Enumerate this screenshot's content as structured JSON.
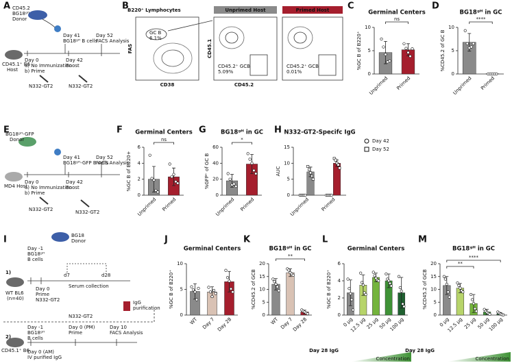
{
  "panel_labels": [
    "A",
    "B",
    "C",
    "D",
    "E",
    "F",
    "G",
    "H",
    "I",
    "J",
    "K",
    "L",
    "M"
  ],
  "schematic_a": {
    "texts": [
      "CD45.2",
      "BG18ᵍᴴ",
      "Donor",
      "Day 41",
      "BG18ᵍᴴ B cells",
      "Day 52",
      "FACS Analysis",
      "CD45.1⁺ B6",
      "Host",
      "Day 0",
      "a) No Immunization",
      "b) Prime",
      "Day 42",
      "Boost",
      "N332-GT2",
      "N332-GT2"
    ]
  },
  "flow_b": {
    "texts": [
      "B220⁺ Lymphocytes",
      "Unprimed Host",
      "Primed Host",
      "FAS",
      "CD38",
      "GC B",
      "6.1%",
      "CD45.1",
      "CD45.2",
      "CD45.2⁺ GCB",
      "5.09%",
      "CD45.2⁺ GCB",
      "0.01%"
    ]
  },
  "schematic_e": {
    "texts": [
      "BG18ᵍᴴ-GFP",
      "Donor",
      "Day 41",
      "BG18ᵍᴴ-GFP B cells",
      "Day 52",
      "FACS Analysis",
      "MD4 Host",
      "Day 0",
      "a) No Immunization",
      "b) Prime",
      "Day 42",
      "Boost",
      "N332-GT2",
      "N332-GT2"
    ]
  },
  "schematic_i": {
    "texts": [
      "1)",
      "BG18",
      "Donor",
      "Day -1",
      "BG18ᵍᴴ",
      "B cells",
      "WT BL6",
      "(n=40)",
      "Day 0",
      "Prime",
      "N332-GT2",
      "d7",
      "d28",
      "Serum collection",
      "IgG",
      "purification",
      "2)",
      "Day -1",
      "BG18ᵍᴴ",
      "B cells",
      "N332-GT2",
      "Day 0 (PM)",
      "Prime",
      "Day 10",
      "FACS Analysis",
      "Day 0 (AM)",
      "IV purified IgG",
      "CD45.1⁺ B6"
    ]
  },
  "chart_data": [
    {
      "type": "bar",
      "title": "Germinal Centers",
      "ylabel": "%GC B of B220⁺",
      "categories": [
        "Unprimed",
        "Primed"
      ],
      "colors": [
        "#8a8a8a",
        "#a51e2d"
      ],
      "ylim": [
        0,
        10
      ],
      "yticks": [
        0,
        5,
        10
      ],
      "annotations": [
        "ns"
      ],
      "series": [
        {
          "values": [
            4.6,
            5.2
          ],
          "errors": [
            2.4,
            1.3
          ],
          "points": [
            [
              7.5,
              5.8,
              4.2,
              2.6,
              2.8
            ],
            [
              6.5,
              5.5,
              4.6,
              3.8,
              5.4
            ]
          ]
        }
      ]
    },
    {
      "type": "bar",
      "title": "BG18ᵍᴴ in GC",
      "ylabel": "%CD45.2 of GC B",
      "categories": [
        "Unprimed",
        "Primed"
      ],
      "colors": [
        "#8a8a8a",
        "#a51e2d"
      ],
      "ylim": [
        0,
        10
      ],
      "yticks": [
        0,
        5,
        10
      ],
      "annotations": [
        "****"
      ],
      "series": [
        {
          "values": [
            6.8,
            0.05
          ],
          "errors": [
            1.9,
            0.05
          ],
          "points": [
            [
              9.3,
              6.5,
              5.6,
              5.8,
              6.5
            ],
            [
              0,
              0,
              0,
              0,
              0
            ]
          ]
        }
      ]
    },
    {
      "type": "bar",
      "title": "Germinal Centers",
      "ylabel": "%GC B of B220+",
      "categories": [
        "Unprimed",
        "Primed"
      ],
      "colors": [
        "#8a8a8a",
        "#a51e2d"
      ],
      "ylim": [
        0,
        6
      ],
      "yticks": [
        0,
        2,
        4,
        6
      ],
      "annotations": [
        "ns"
      ],
      "series": [
        {
          "values": [
            2.0,
            2.3
          ],
          "errors": [
            1.6,
            1.1
          ],
          "points": [
            [
              5,
              2.1,
              1.9,
              0.6,
              0.4
            ],
            [
              3.9,
              2.3,
              2.6,
              1.7,
              1.5
            ]
          ]
        }
      ]
    },
    {
      "type": "bar",
      "title": "BG18ᵍᴴ in GC",
      "ylabel": "%GFP⁺ of GC B",
      "categories": [
        "Unprimed",
        "Primed"
      ],
      "colors": [
        "#8a8a8a",
        "#a51e2d"
      ],
      "ylim": [
        0,
        60
      ],
      "yticks": [
        0,
        20,
        40,
        60
      ],
      "annotations": [
        "*"
      ],
      "series": [
        {
          "values": [
            18,
            39
          ],
          "errors": [
            8,
            12
          ],
          "points": [
            [
              27,
              20,
              13,
              14,
              11
            ],
            [
              52,
              45,
              40,
              31,
              27
            ]
          ]
        }
      ]
    },
    {
      "type": "bar",
      "title": "N332-GT2-Specifc IgG",
      "ylabel": "AUC",
      "categories": [
        "Unprimed",
        "Primed"
      ],
      "colors": [
        "#8a8a8a",
        "#a51e2d"
      ],
      "ylim": [
        0,
        15
      ],
      "yticks": [
        0,
        5,
        10,
        15
      ],
      "annotations": [],
      "series": [
        {
          "name": "Day 42",
          "marker": "circle",
          "values": [
            0,
            0
          ],
          "errors": [
            0,
            0
          ],
          "points": [
            [
              0,
              0,
              0,
              0,
              0
            ],
            [
              0,
              0,
              0,
              0,
              0
            ]
          ]
        },
        {
          "name": "Day 52",
          "marker": "square",
          "values": [
            7.3,
            10
          ],
          "errors": [
            1.5,
            1
          ],
          "points": [
            [
              9,
              8,
              7,
              6,
              5
            ],
            [
              11.5,
              11,
              10,
              9.5,
              8.5
            ]
          ]
        }
      ]
    },
    {
      "type": "bar",
      "title": "Germinal Centers",
      "ylabel": "%GC B of B220⁺",
      "categories": [
        "WT",
        "Day 7",
        "Day 28"
      ],
      "colors": [
        "#8a8a8a",
        "#d9c2b4",
        "#a51e2d"
      ],
      "ylim": [
        0,
        10
      ],
      "yticks": [
        0,
        5,
        10
      ],
      "annotations": [],
      "series": [
        {
          "values": [
            4.6,
            4.5,
            6.5
          ],
          "errors": [
            1.5,
            1,
            2
          ],
          "points": [
            [
              5.5,
              4.9,
              4.5,
              3,
              5.2
            ],
            [
              5.4,
              4.5,
              3.6,
              4.8,
              4.2
            ],
            [
              8.7,
              7.3,
              6.6,
              5.1,
              4.5
            ]
          ]
        }
      ]
    },
    {
      "type": "bar",
      "title": "BG18ᵍᴴ in GC",
      "ylabel": "%CD45.2 of GCB",
      "categories": [
        "WT",
        "Day 7",
        "Day 28"
      ],
      "colors": [
        "#8a8a8a",
        "#d9c2b4",
        "#a51e2d"
      ],
      "ylim": [
        0,
        20
      ],
      "yticks": [
        0,
        5,
        10,
        15,
        20
      ],
      "annotations": [
        "**"
      ],
      "series": [
        {
          "values": [
            12,
            16.5,
            1.2
          ],
          "errors": [
            2.2,
            1.5,
            0.7
          ],
          "points": [
            [
              14,
              13,
              12,
              11,
              9.5
            ],
            [
              18,
              17.5,
              16.5,
              16,
              15.5
            ],
            [
              2,
              1.5,
              1.2,
              0.8,
              0.5
            ]
          ]
        }
      ]
    },
    {
      "type": "bar",
      "title": "Germinal Centers",
      "ylabel": "%GC B of B220⁺",
      "xlabel": "Day 28 IgG",
      "gradient_label": "Concentration",
      "categories": [
        "0 µg",
        "12.5 µg",
        "25 µg",
        "50 µg",
        "100 µg"
      ],
      "colors": [
        "#8a8a8a",
        "#b7d46a",
        "#74b43c",
        "#3f9236",
        "#1f6130"
      ],
      "ylim": [
        0,
        6
      ],
      "yticks": [
        0,
        2,
        4,
        6
      ],
      "annotations": [],
      "series": [
        {
          "values": [
            2.6,
            3.5,
            4.4,
            4.0,
            2.6
          ],
          "errors": [
            1.5,
            1.2,
            0.5,
            0.8,
            1.8
          ],
          "points": [
            [
              4.2,
              3.1,
              2.5,
              1.8,
              0.6
            ],
            [
              4.9,
              3.8,
              3.5,
              2.6,
              2.4
            ],
            [
              5,
              4.6,
              4.3,
              4.1,
              4
            ],
            [
              4.8,
              4.2,
              4,
              3.7,
              3.4
            ],
            [
              4.5,
              3.2,
              2.8,
              1.3,
              1
            ]
          ]
        }
      ]
    },
    {
      "type": "bar",
      "title": "BG18ᵍᴴ in GC",
      "ylabel": "%CD45.2 of GCB",
      "xlabel": "Day 28 IgG",
      "gradient_label": "Concentration",
      "categories": [
        "0 µg",
        "12.5 µg",
        "25 µg",
        "50 µg",
        "100 µg"
      ],
      "colors": [
        "#8a8a8a",
        "#b7d46a",
        "#74b43c",
        "#3f9236",
        "#1f6130"
      ],
      "ylim": [
        0,
        20
      ],
      "yticks": [
        0,
        5,
        10,
        15,
        20
      ],
      "annotations": [
        "**",
        "****"
      ],
      "series": [
        {
          "values": [
            11.5,
            10.5,
            4.5,
            1.2,
            0.5
          ],
          "errors": [
            3.5,
            1.8,
            3.5,
            1,
            0.5
          ],
          "points": [
            [
              15,
              14,
              12,
              9,
              7
            ],
            [
              12.5,
              11.5,
              10.5,
              9.5,
              9
            ],
            [
              8,
              6,
              4.5,
              2.5,
              1.5
            ],
            [
              2.2,
              1.5,
              1,
              0.6,
              0.3
            ],
            [
              1.2,
              0.8,
              0.4,
              0.2,
              0
            ]
          ]
        }
      ]
    }
  ]
}
